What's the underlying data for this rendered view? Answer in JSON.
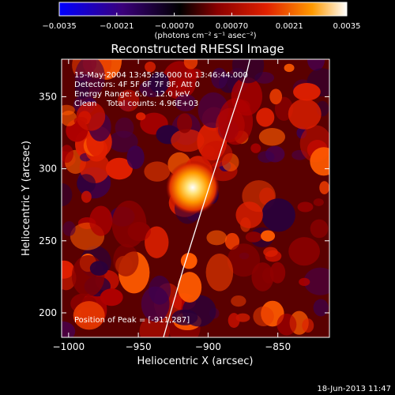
{
  "chart_data": {
    "type": "heatmap",
    "title": "Reconstructed RHESSI Image",
    "xlabel": "Heliocentric X (arcsec)",
    "ylabel": "Heliocentric Y (arcsec)",
    "xlim": [
      -1005,
      -813
    ],
    "ylim": [
      183,
      376
    ],
    "x_ticks": [
      -1000,
      -950,
      -900,
      -850
    ],
    "x_tick_labels": [
      "−1000",
      "−950",
      "−900",
      "−850"
    ],
    "y_ticks": [
      200,
      250,
      300,
      350
    ],
    "y_tick_labels": [
      "200",
      "250",
      "300",
      "350"
    ],
    "colorbar": {
      "min": -0.0035,
      "max": 0.0035,
      "ticks": [
        -0.0035,
        -0.0021,
        -0.0007,
        0.0007,
        0.0021,
        0.0035
      ],
      "tick_labels": [
        "−0.0035",
        "−0.0021",
        "−0.00070",
        "0.00070",
        "0.0021",
        "0.0035"
      ],
      "units_label": "(photons cm⁻² s⁻¹ asec⁻²)",
      "colors": [
        "#0000ff",
        "#3a007a",
        "#000000",
        "#8a0000",
        "#e02000",
        "#ff9a00",
        "#ffffff"
      ]
    },
    "annotations": [
      "15-May-2004 13:45:36.000 to 13:46:44.000",
      "Detectors: 4F 5F 6F 7F 8F, Att 0",
      "Energy Range: 6.0 - 12.0 keV",
      "Clean    Total counts: 4.96E+03"
    ],
    "peak_label": "Position of Peak = [-911,287]",
    "peak": [
      -911,
      287
    ],
    "limb_points": [
      [
        -932,
        183
      ],
      [
        -918,
        230
      ],
      [
        -905,
        270
      ],
      [
        -895,
        300
      ],
      [
        -885,
        330
      ],
      [
        -872,
        368
      ],
      [
        -870,
        376
      ]
    ]
  },
  "footer_date": "18-Jun-2013 11:47"
}
